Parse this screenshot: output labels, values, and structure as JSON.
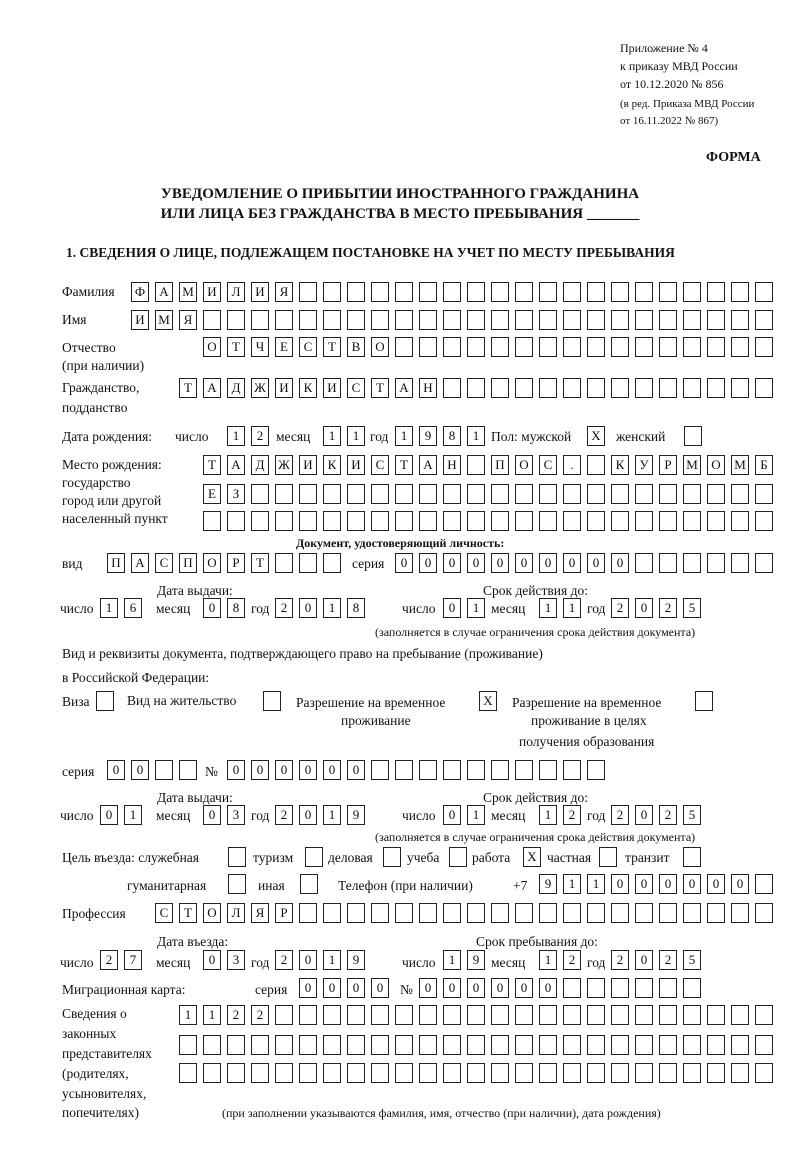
{
  "header": {
    "line1": "Приложение № 4",
    "line2": "к приказу МВД России",
    "line3": "от 10.12.2020 № 856",
    "line4": "(в ред. Приказа МВД России",
    "line5": "от 16.11.2022 № 867)",
    "forma": "ФОРМА"
  },
  "title": {
    "line1": "УВЕДОМЛЕНИЕ О ПРИБЫТИИ ИНОСТРАННОГО ГРАЖДАНИНА",
    "line2": "ИЛИ ЛИЦА БЕЗ ГРАЖДАНСТВА В МЕСТО ПРЕБЫВАНИЯ _______"
  },
  "section1": "1. СВЕДЕНИЯ О ЛИЦЕ, ПОДЛЕЖАЩЕМ ПОСТАНОВКЕ НА УЧЕТ ПО МЕСТУ ПРЕБЫВАНИЯ",
  "labels": {
    "surname": "Фамилия",
    "name": "Имя",
    "patronymic1": "Отчество",
    "patronymic2": "(при наличии)",
    "citizenship1": "Гражданство,",
    "citizenship2": "подданство",
    "birth_date": "Дата рождения:",
    "day": "число",
    "month": "месяц",
    "year": "год",
    "sex": "Пол: мужской",
    "female": "женский",
    "birthplace1": "Место рождения:",
    "birthplace2": "государство",
    "birthplace3": "город или другой",
    "birthplace4": "населенный пункт",
    "id_doc": "Документ, удостоверяющий личность:",
    "kind": "вид",
    "series": "серия",
    "number": "№",
    "issue_date": "Дата выдачи:",
    "valid_until": "Срок действия до:",
    "valid_note": "(заполняется в случае ограничения срока действия документа)",
    "right_doc1": "Вид и реквизиты документа, подтверждающего право на пребывание (проживание)",
    "right_doc2": "в Российской Федерации:",
    "visa": "Виза",
    "residence": "Вид на жительство",
    "trp1": "Разрешение на временное",
    "trp2": "проживание",
    "trpe1": "Разрешение на временное",
    "trpe2": "проживание в целях",
    "trpe3": "получения образования",
    "purpose": "Цель въезда: служебная",
    "tourism": "туризм",
    "business": "деловая",
    "study": "учеба",
    "work": "работа",
    "private": "частная",
    "transit": "транзит",
    "humanitarian": "гуманитарная",
    "other": "иная",
    "phone": "Телефон (при наличии)",
    "phone_prefix": "+7",
    "profession": "Профессия",
    "entry_date": "Дата въезда:",
    "stay_until": "Срок пребывания до:",
    "migration_card": "Миграционная карта:",
    "reps1": "Сведения о",
    "reps2": "законных",
    "reps3": "представителях",
    "reps4": "(родителях,",
    "reps5": "усыновителях,",
    "reps6": "попечителях)",
    "reps_note": "(при заполнении указываются фамилия, имя, отчество (при наличии), дата рождения)"
  },
  "values": {
    "surname": "ФАМИЛИЯ",
    "name": "ИМЯ",
    "patronymic": "ОТЧЕСТВО",
    "citizenship": "ТАДЖИКИСТАН",
    "birth_day": "12",
    "birth_month": "11",
    "birth_year": "1981",
    "sex_male": "X",
    "sex_female": "",
    "birthplace_1": "ТАДЖИКИСТАН ПОС. КУРМОМБ",
    "birthplace_2": "ЕЗ",
    "birthplace_3": "",
    "doc_kind": "ПАСПОРТ",
    "doc_series": "0000",
    "doc_number": "000000",
    "doc_issue_day": "16",
    "doc_issue_month": "08",
    "doc_issue_year": "2018",
    "doc_valid_day": "01",
    "doc_valid_month": "11",
    "doc_valid_year": "2025",
    "visa": "",
    "residence_permit": "",
    "trp": "X",
    "trp_education": "",
    "right_series": "00",
    "right_number": "000000",
    "right_issue_day": "01",
    "right_issue_month": "03",
    "right_issue_year": "2019",
    "right_valid_day": "01",
    "right_valid_month": "12",
    "right_valid_year": "2025",
    "purpose_official": "",
    "purpose_tourism": "",
    "purpose_business": "",
    "purpose_study": "",
    "purpose_work": "X",
    "purpose_private": "",
    "purpose_transit": "",
    "purpose_humanitarian": "",
    "purpose_other": "",
    "phone": "911000000",
    "profession": "СТОЛЯР",
    "entry_day": "27",
    "entry_month": "03",
    "entry_year": "2019",
    "stay_day": "19",
    "stay_month": "12",
    "stay_year": "2025",
    "mig_series": "0000",
    "mig_number": "000000",
    "reps_1": "1122",
    "reps_2": "",
    "reps_3": ""
  }
}
